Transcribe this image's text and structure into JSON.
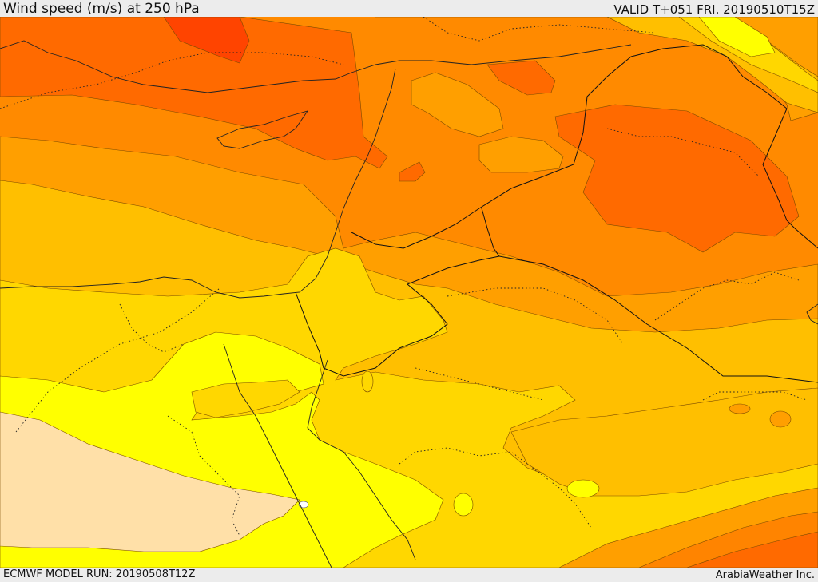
{
  "header": {
    "left_title": "Wind speed (m/s) at 250 hPa",
    "right_title": "VALID T+051 FRI. 20190510T15Z"
  },
  "footer": {
    "left_text": "ECMWF MODEL RUN: 20190508T12Z",
    "right_text": "ArabiaWeather Inc."
  },
  "map": {
    "colors": {
      "speed_1": "#ffe0a8",
      "speed_2": "#ffff00",
      "speed_3": "#ffd700",
      "speed_4": "#ffbf00",
      "speed_5": "#ff9f00",
      "speed_6": "#ff8400",
      "speed_7": "#ff6a00",
      "speed_8": "#ff4400",
      "coast": "#222222",
      "border": "#111111"
    }
  }
}
